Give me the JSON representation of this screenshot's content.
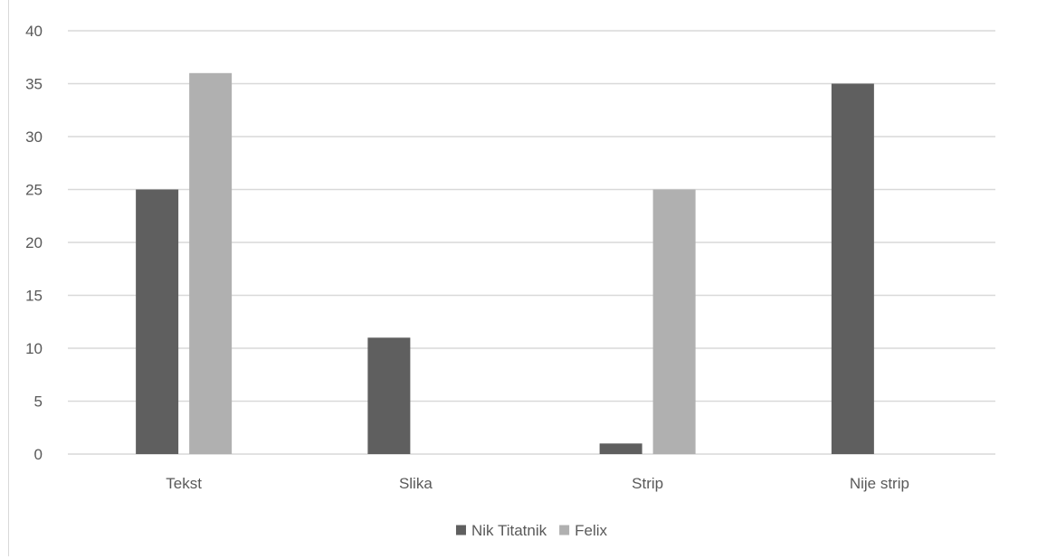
{
  "chart_data": {
    "type": "bar",
    "title": "",
    "xlabel": "",
    "ylabel": "",
    "categories": [
      "Tekst",
      "Slika",
      "Strip",
      "Nije strip"
    ],
    "series": [
      {
        "name": "Nik Titatnik",
        "values": [
          25,
          11,
          1,
          35
        ],
        "color": "#5f5f5f"
      },
      {
        "name": "Felix",
        "values": [
          36,
          0,
          25,
          0
        ],
        "color": "#b0b0b0"
      }
    ],
    "ylim": [
      0,
      40
    ],
    "yticks": [
      "0",
      "5",
      "10",
      "15",
      "20",
      "25",
      "30",
      "35",
      "40"
    ],
    "grid": true,
    "legend": "bottom",
    "gridline_color": "#d9d9d9",
    "axis_line_color": "#d9d9d9",
    "tick_label_color": "#595959"
  }
}
